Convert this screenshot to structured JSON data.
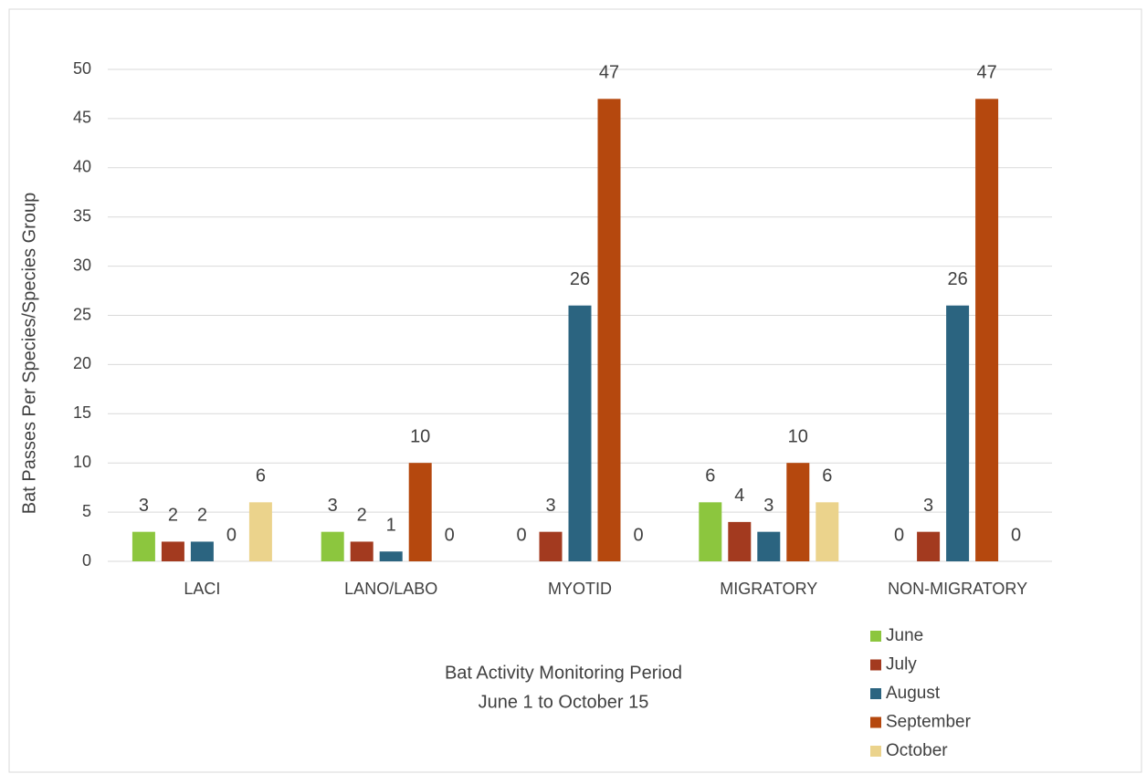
{
  "chart_data": {
    "type": "bar",
    "y_label": "Bat Passes Per Species/Species Group",
    "x_label": [
      "Bat Activity Monitoring Period",
      "June 1 to October 15"
    ],
    "categories": [
      "LACI",
      "LANO/LABO",
      "MYOTID",
      "MIGRATORY",
      "NON-MIGRATORY"
    ],
    "series": [
      {
        "name": "June",
        "color": "#8cc63e",
        "values": [
          3,
          3,
          0,
          6,
          0
        ]
      },
      {
        "name": "July",
        "color": "#a33a1f",
        "values": [
          2,
          2,
          3,
          4,
          3
        ]
      },
      {
        "name": "August",
        "color": "#2b6480",
        "values": [
          2,
          1,
          26,
          3,
          26
        ]
      },
      {
        "name": "September",
        "color": "#b5480e",
        "values": [
          0,
          10,
          47,
          10,
          47
        ]
      },
      {
        "name": "October",
        "color": "#ebd38c",
        "values": [
          6,
          0,
          0,
          6,
          0
        ]
      }
    ],
    "ylim": [
      0,
      50
    ],
    "yticks": [
      0,
      5,
      10,
      15,
      20,
      25,
      30,
      35,
      40,
      45,
      50
    ],
    "grid": true,
    "legend": "bottom-right"
  }
}
